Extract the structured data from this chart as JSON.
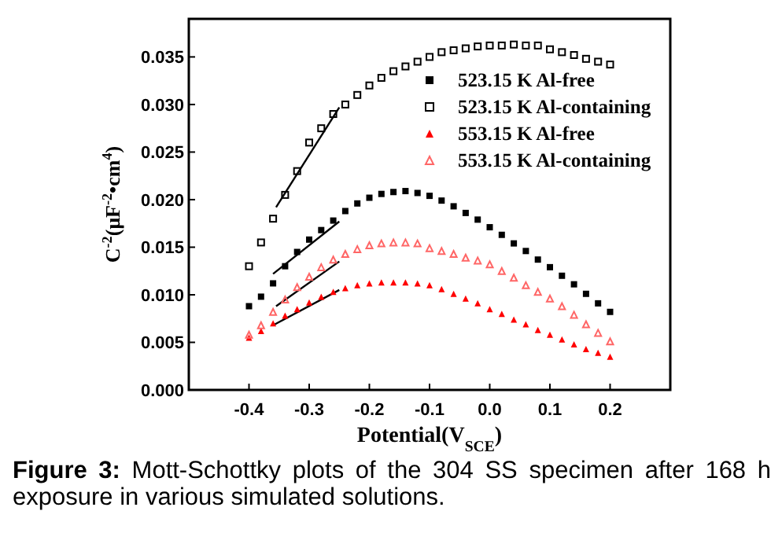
{
  "chart_data": {
    "type": "scatter",
    "xlabel": "Potential(V$_{SCE}$)",
    "ylabel": "C$^{-2}$(μF$^{-2}$•cm$^{4}$)",
    "x": [
      -0.4,
      -0.38,
      -0.36,
      -0.34,
      -0.32,
      -0.3,
      -0.28,
      -0.26,
      -0.24,
      -0.22,
      -0.2,
      -0.18,
      -0.16,
      -0.14,
      -0.12,
      -0.1,
      -0.08,
      -0.06,
      -0.04,
      -0.02,
      0,
      0.02,
      0.04,
      0.06,
      0.08,
      0.1,
      0.12,
      0.14,
      0.16,
      0.18,
      0.2
    ],
    "xlim": [
      -0.5,
      0.3
    ],
    "xticks": [
      -0.4,
      -0.3,
      -0.2,
      -0.1,
      "0.0",
      0.1,
      0.2
    ],
    "ylim": [
      0,
      0.039
    ],
    "yticks": [
      "0.000",
      0.005,
      "0.010",
      0.015,
      "0.020",
      0.025,
      "0.030",
      0.035
    ],
    "legend": "top right",
    "grid": false,
    "series": [
      {
        "name": "523.15 K Al-free",
        "color": "#000000",
        "marker": "square",
        "values": [
          0.0088,
          0.0098,
          0.0112,
          0.013,
          0.0145,
          0.0158,
          0.0168,
          0.0178,
          0.0188,
          0.0196,
          0.0202,
          0.0206,
          0.0208,
          0.0209,
          0.0207,
          0.0204,
          0.0199,
          0.0193,
          0.0186,
          0.0179,
          0.0171,
          0.0163,
          0.0154,
          0.0146,
          0.0137,
          0.0129,
          0.012,
          0.0111,
          0.0101,
          0.0091,
          0.0082
        ]
      },
      {
        "name": "523.15 K Al-containing",
        "color": "#000000",
        "marker": "square",
        "values": [
          0.013,
          0.0155,
          0.018,
          0.0205,
          0.023,
          0.026,
          0.0275,
          0.029,
          0.03,
          0.031,
          0.032,
          0.0328,
          0.0335,
          0.034,
          0.0345,
          0.035,
          0.0355,
          0.0357,
          0.0359,
          0.0361,
          0.0362,
          0.0362,
          0.0363,
          0.0362,
          0.0362,
          0.0358,
          0.0355,
          0.0352,
          0.0348,
          0.0345,
          0.0342
        ]
      },
      {
        "name": "553.15 K Al-free",
        "color": "#ff0000",
        "marker": "triangle",
        "values": [
          0.0055,
          0.0062,
          0.007,
          0.0078,
          0.0085,
          0.0092,
          0.0098,
          0.0103,
          0.0107,
          0.011,
          0.0112,
          0.0113,
          0.0113,
          0.0113,
          0.0112,
          0.011,
          0.0106,
          0.0101,
          0.0096,
          0.0091,
          0.0085,
          0.008,
          0.0074,
          0.0069,
          0.0063,
          0.0058,
          0.0053,
          0.0048,
          0.0043,
          0.0039,
          0.0035
        ]
      },
      {
        "name": "553.15 K Al-containing",
        "color": "#ff6666",
        "marker": "triangle",
        "values": [
          0.0058,
          0.0068,
          0.0082,
          0.0095,
          0.0108,
          0.0119,
          0.0129,
          0.0137,
          0.0143,
          0.0148,
          0.0152,
          0.0154,
          0.0155,
          0.0155,
          0.0154,
          0.0149,
          0.0146,
          0.0143,
          0.0139,
          0.0136,
          0.0132,
          0.0125,
          0.0118,
          0.011,
          0.0103,
          0.0096,
          0.0088,
          0.0079,
          0.0069,
          0.006,
          0.0051
        ]
      },
      {
        "type": "line",
        "color": "#000000",
        "x": [
          -0.36,
          -0.25
        ],
        "values": [
          0.0122,
          0.0177
        ]
      },
      {
        "type": "line",
        "color": "#000000",
        "x": [
          -0.355,
          -0.25
        ],
        "values": [
          0.0192,
          0.0297
        ]
      },
      {
        "type": "line",
        "color": "#000000",
        "x": [
          -0.36,
          -0.25
        ],
        "values": [
          0.0068,
          0.0105
        ]
      },
      {
        "type": "line",
        "color": "#000000",
        "x": [
          -0.355,
          -0.25
        ],
        "values": [
          0.0088,
          0.0135
        ]
      }
    ],
    "annotations": [
      "Figure 3: Mott-Schottky plots of the 304 SS specimen after 168 h exposure in various simulated solutions."
    ]
  }
}
